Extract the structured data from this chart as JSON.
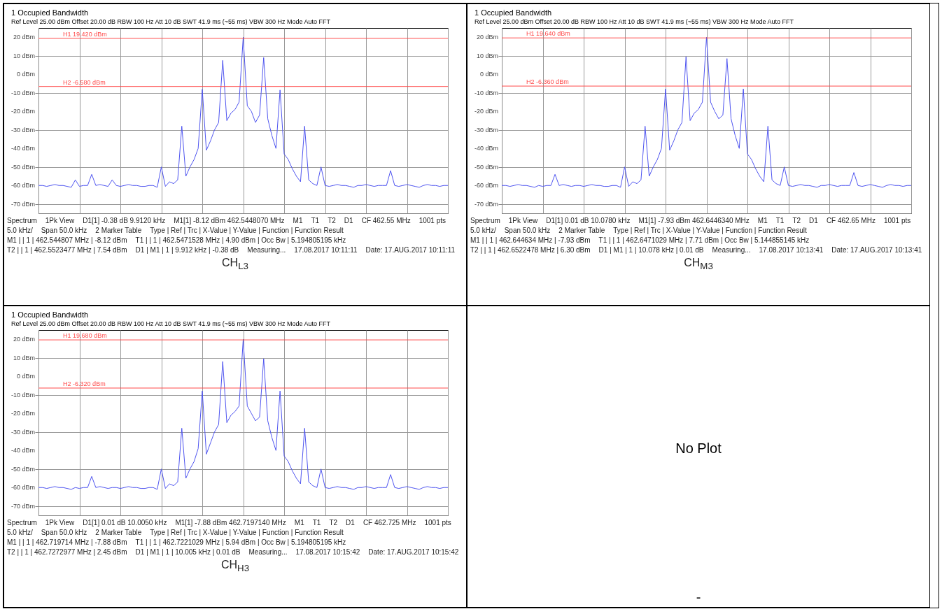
{
  "chart_data": [
    {
      "type": "line",
      "title": "1 Occupied Bandwidth",
      "subtitle": "Ref Level 25.00 dBm   Offset 20.00 dB   RBW 100 Hz   Att 10 dB   SWT 41.9 ms (~55 ms)   VBW 300 Hz   Mode Auto FFT",
      "color": "#4f55f0",
      "grid": true,
      "tick_labels": "y",
      "categories": [
        null,
        null,
        null,
        null,
        null,
        null,
        null,
        null,
        null,
        null,
        null,
        null,
        null,
        null,
        null,
        null,
        null,
        null,
        null,
        null,
        null,
        null,
        null,
        null,
        null,
        null,
        null,
        null,
        null,
        null,
        null,
        null,
        null,
        null,
        null,
        null,
        null,
        null,
        null,
        null,
        null,
        null,
        null,
        null,
        null,
        null,
        null,
        null,
        null,
        null,
        null,
        null,
        null,
        null,
        null,
        null,
        null,
        null,
        null,
        null,
        null,
        null,
        null,
        null,
        null,
        null,
        null,
        null,
        null,
        null,
        null,
        null,
        null,
        null,
        null,
        null,
        null,
        null,
        null,
        null,
        null,
        null,
        null,
        null,
        null,
        null,
        null,
        null,
        null,
        null,
        null,
        null,
        null,
        null,
        null,
        null,
        null,
        null,
        null,
        null,
        null
      ],
      "ylim": [
        -75,
        25
      ],
      "yticks": [
        {
          "value": -70,
          "label": "-70 dBm"
        },
        {
          "value": -60,
          "label": "-60 dBm"
        },
        {
          "value": -50,
          "label": "-50 dBm"
        },
        {
          "value": -40,
          "label": "-40 dBm"
        },
        {
          "value": -30,
          "label": "-30 dBm"
        },
        {
          "value": -20,
          "label": "-20 dBm"
        },
        {
          "value": -10,
          "label": "-10 dBm"
        },
        {
          "value": 0,
          "label": "0 dBm"
        },
        {
          "value": 10,
          "label": "10 dBm"
        },
        {
          "value": 20,
          "label": "20 dBm"
        }
      ],
      "values": [
        -60,
        -60,
        -60.5,
        -60,
        -59.5,
        -60,
        -60,
        -60.5,
        -61,
        -57,
        -60.5,
        -60,
        -60,
        -54,
        -60,
        -59.5,
        -60,
        -60.5,
        -57,
        -60,
        -60.5,
        -60,
        -59.5,
        -60,
        -60,
        -60.5,
        -60.5,
        -60,
        -60,
        -61,
        -50,
        -60.5,
        -58,
        -59,
        -57,
        -28,
        -55,
        -50,
        -46,
        -40,
        -8.1,
        -41,
        -36,
        -30,
        -26,
        7.5,
        -25,
        -21,
        -19,
        -15,
        20,
        -17,
        -20,
        -26,
        -22,
        9,
        -24,
        -33,
        -40,
        -8.5,
        -43,
        -46,
        -51,
        -55,
        -58,
        -28,
        -57,
        -59,
        -60,
        -50,
        -60,
        -60.5,
        -60,
        -59.5,
        -60,
        -60,
        -60.5,
        -61,
        -60,
        -60,
        -59.5,
        -60,
        -60.5,
        -60,
        -60,
        -60,
        -52,
        -60,
        -60.5,
        -60,
        -59.5,
        -60,
        -60.5,
        -61,
        -60,
        -59.5,
        -60,
        -60,
        -60.5,
        -60,
        -60
      ],
      "ref_lines": [
        {
          "axis": "y",
          "value": 19.42,
          "label": "H1 19.420 dBm",
          "color": "#ff4a4a"
        },
        {
          "axis": "y",
          "value": -6.58,
          "label": "H2 -6.580 dBm",
          "color": "#ff4a4a"
        }
      ],
      "annotations": [
        "Spectrum",
        "1Pk View",
        "D1[1] -0.38 dB 9.9120 kHz",
        "M1[1] -8.12 dBm 462.5448070 MHz",
        "M1",
        "T1",
        "T2",
        "D1",
        "CF 462.55 MHz",
        "1001 pts",
        "5.0 kHz/",
        "Span 50.0 kHz",
        "2 Marker Table",
        "Type | Ref | Trc | X-Value | Y-Value | Function | Function Result",
        "M1 | | 1 | 462.544807 MHz | -8.12 dBm",
        "T1 | | 1 | 462.5471528 MHz | 4.90 dBm | Occ Bw | 5.194805195 kHz",
        "T2 | | 1 | 462.5523477 MHz | 7.54 dBm",
        "D1 | M1 | 1 | 9.912 kHz | -0.38 dB",
        "Measuring...",
        "17.08.2017 10:11:11",
        "Date: 17.AUG.2017 10:11:11",
        "CH$_{L3}$"
      ]
    },
    {
      "type": "line",
      "title": "1 Occupied Bandwidth",
      "subtitle": "Ref Level 25.00 dBm   Offset 20.00 dB   RBW 100 Hz   Att 10 dB   SWT 41.9 ms (~55 ms)   VBW 300 Hz   Mode Auto FFT",
      "color": "#4f55f0",
      "grid": true,
      "tick_labels": "y",
      "categories": [
        null,
        null,
        null,
        null,
        null,
        null,
        null,
        null,
        null,
        null,
        null,
        null,
        null,
        null,
        null,
        null,
        null,
        null,
        null,
        null,
        null,
        null,
        null,
        null,
        null,
        null,
        null,
        null,
        null,
        null,
        null,
        null,
        null,
        null,
        null,
        null,
        null,
        null,
        null,
        null,
        null,
        null,
        null,
        null,
        null,
        null,
        null,
        null,
        null,
        null,
        null,
        null,
        null,
        null,
        null,
        null,
        null,
        null,
        null,
        null,
        null,
        null,
        null,
        null,
        null,
        null,
        null,
        null,
        null,
        null,
        null,
        null,
        null,
        null,
        null,
        null,
        null,
        null,
        null,
        null,
        null,
        null,
        null,
        null,
        null,
        null,
        null,
        null,
        null,
        null,
        null,
        null,
        null,
        null,
        null,
        null,
        null,
        null,
        null,
        null,
        null
      ],
      "ylim": [
        -75,
        25
      ],
      "yticks": [
        {
          "value": -70,
          "label": "-70 dBm"
        },
        {
          "value": -60,
          "label": "-60 dBm"
        },
        {
          "value": -50,
          "label": "-50 dBm"
        },
        {
          "value": -40,
          "label": "-40 dBm"
        },
        {
          "value": -30,
          "label": "-30 dBm"
        },
        {
          "value": -20,
          "label": "-20 dBm"
        },
        {
          "value": -10,
          "label": "-10 dBm"
        },
        {
          "value": 0,
          "label": "0 dBm"
        },
        {
          "value": 10,
          "label": "10 dBm"
        },
        {
          "value": 20,
          "label": "20 dBm"
        }
      ],
      "values": [
        -60,
        -60,
        -60.5,
        -60,
        -59.5,
        -60,
        -60,
        -60.5,
        -61,
        -60,
        -60.5,
        -60,
        -60,
        -54,
        -60,
        -59.5,
        -60,
        -60.5,
        -60,
        -60,
        -60.5,
        -60,
        -59.5,
        -60,
        -60,
        -60.5,
        -60.5,
        -60,
        -60,
        -61,
        -50,
        -60.5,
        -58,
        -59,
        -57,
        -28,
        -55,
        -50,
        -46,
        -40,
        -7.9,
        -41,
        -36,
        -30,
        -26,
        9.5,
        -25,
        -21,
        -19,
        -15,
        20,
        -15,
        -20,
        -24,
        -22,
        8.5,
        -24,
        -33,
        -40,
        -7.9,
        -43,
        -46,
        -51,
        -55,
        -58,
        -28,
        -57,
        -59,
        -60,
        -50,
        -60,
        -60.5,
        -60,
        -59.5,
        -60,
        -60,
        -60.5,
        -61,
        -60,
        -60,
        -59.5,
        -60,
        -60.5,
        -60,
        -60,
        -60,
        -53,
        -60,
        -60.5,
        -60,
        -59.5,
        -60,
        -60.5,
        -61,
        -60,
        -59.5,
        -60,
        -60,
        -60.5,
        -60,
        -60
      ],
      "ref_lines": [
        {
          "axis": "y",
          "value": 19.64,
          "label": "H1 19.640 dBm",
          "color": "#ff4a4a"
        },
        {
          "axis": "y",
          "value": -6.36,
          "label": "H2 -6.360 dBm",
          "color": "#ff4a4a"
        }
      ],
      "annotations": [
        "Spectrum",
        "1Pk View",
        "D1[1] 0.01 dB 10.0780 kHz",
        "M1[1] -7.93 dBm 462.6446340 MHz",
        "M1",
        "T1",
        "T2",
        "D1",
        "CF 462.65 MHz",
        "1001 pts",
        "5.0 kHz/",
        "Span 50.0 kHz",
        "2 Marker Table",
        "Type | Ref | Trc | X-Value | Y-Value | Function | Function Result",
        "M1 | | 1 | 462.644634 MHz | -7.93 dBm",
        "T1 | | 1 | 462.6471029 MHz | 7.71 dBm | Occ Bw | 5.144855145 kHz",
        "T2 | | 1 | 462.6522478 MHz | 6.30 dBm",
        "D1 | M1 | 1 | 10.078 kHz | 0.01 dB",
        "Measuring...",
        "17.08.2017 10:13:41",
        "Date: 17.AUG.2017 10:13:41",
        "CH$_{M3}$"
      ]
    },
    {
      "type": "line",
      "title": "1 Occupied Bandwidth",
      "subtitle": "Ref Level 25.00 dBm   Offset 20.00 dB   RBW 100 Hz   Att 10 dB   SWT 41.9 ms (~55 ms)   VBW 300 Hz   Mode Auto FFT",
      "color": "#4f55f0",
      "grid": true,
      "tick_labels": "y",
      "categories": [
        null,
        null,
        null,
        null,
        null,
        null,
        null,
        null,
        null,
        null,
        null,
        null,
        null,
        null,
        null,
        null,
        null,
        null,
        null,
        null,
        null,
        null,
        null,
        null,
        null,
        null,
        null,
        null,
        null,
        null,
        null,
        null,
        null,
        null,
        null,
        null,
        null,
        null,
        null,
        null,
        null,
        null,
        null,
        null,
        null,
        null,
        null,
        null,
        null,
        null,
        null,
        null,
        null,
        null,
        null,
        null,
        null,
        null,
        null,
        null,
        null,
        null,
        null,
        null,
        null,
        null,
        null,
        null,
        null,
        null,
        null,
        null,
        null,
        null,
        null,
        null,
        null,
        null,
        null,
        null,
        null,
        null,
        null,
        null,
        null,
        null,
        null,
        null,
        null,
        null,
        null,
        null,
        null,
        null,
        null,
        null,
        null,
        null,
        null,
        null,
        null
      ],
      "ylim": [
        -75,
        25
      ],
      "yticks": [
        {
          "value": -70,
          "label": "-70 dBm"
        },
        {
          "value": -60,
          "label": "-60 dBm"
        },
        {
          "value": -50,
          "label": "-50 dBm"
        },
        {
          "value": -40,
          "label": "-40 dBm"
        },
        {
          "value": -30,
          "label": "-30 dBm"
        },
        {
          "value": -20,
          "label": "-20 dBm"
        },
        {
          "value": -10,
          "label": "-10 dBm"
        },
        {
          "value": 0,
          "label": "0 dBm"
        },
        {
          "value": 10,
          "label": "10 dBm"
        },
        {
          "value": 20,
          "label": "20 dBm"
        }
      ],
      "values": [
        -60,
        -60,
        -60.5,
        -60,
        -59.5,
        -60,
        -60,
        -60.5,
        -61,
        -60,
        -60.5,
        -60,
        -60,
        -54,
        -60,
        -59.5,
        -60,
        -60.5,
        -60,
        -60,
        -60.5,
        -60,
        -59.5,
        -60,
        -60,
        -60.5,
        -60.5,
        -60,
        -60,
        -61,
        -50,
        -60.5,
        -58,
        -59,
        -57,
        -28,
        -55,
        -50,
        -46,
        -39,
        -7.9,
        -42,
        -36,
        -30,
        -26,
        8,
        -25,
        -21,
        -19,
        -16,
        20,
        -16,
        -20,
        -24,
        -22,
        9.5,
        -24,
        -33,
        -40,
        -7.9,
        -43,
        -46,
        -51,
        -55,
        -58,
        -28,
        -57,
        -59,
        -60,
        -50,
        -60,
        -60.5,
        -60,
        -59.5,
        -60,
        -60,
        -60.5,
        -61,
        -60,
        -60,
        -59.5,
        -60,
        -60.5,
        -60,
        -60,
        -60,
        -53,
        -60,
        -60.5,
        -60,
        -59.5,
        -60,
        -60.5,
        -61,
        -60,
        -59.5,
        -60,
        -60,
        -60.5,
        -60,
        -60
      ],
      "ref_lines": [
        {
          "axis": "y",
          "value": 19.68,
          "label": "H1 19.680 dBm",
          "color": "#ff4a4a"
        },
        {
          "axis": "y",
          "value": -6.32,
          "label": "H2 -6.320 dBm",
          "color": "#ff4a4a"
        }
      ],
      "annotations": [
        "Spectrum",
        "1Pk View",
        "D1[1] 0.01 dB 10.0050 kHz",
        "M1[1] -7.88 dBm 462.7197140 MHz",
        "M1",
        "T1",
        "T2",
        "D1",
        "CF 462.725 MHz",
        "1001 pts",
        "5.0 kHz/",
        "Span 50.0 kHz",
        "2 Marker Table",
        "Type | Ref | Trc | X-Value | Y-Value | Function | Function Result",
        "M1 | | 1 | 462.719714 MHz | -7.88 dBm",
        "T1 | | 1 | 462.7221029 MHz | 5.94 dBm | Occ Bw | 5.194805195 kHz",
        "T2 | | 1 | 462.7272977 MHz | 2.45 dBm",
        "D1 | M1 | 1 | 10.005 kHz | 0.01 dB",
        "Measuring...",
        "17.08.2017 10:15:42",
        "Date: 17.AUG.2017 10:15:42",
        "CH$_{H3}$"
      ]
    },
    {
      "type": "other",
      "annotations": [
        "No Plot",
        "-"
      ]
    }
  ]
}
